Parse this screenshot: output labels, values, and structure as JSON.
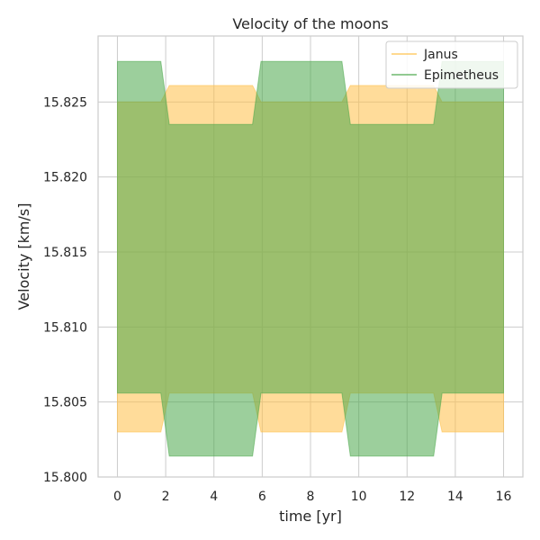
{
  "chart_data": {
    "type": "area",
    "title": "Velocity of the moons",
    "xlabel": "time [yr]",
    "ylabel": "Velocity [km/s]",
    "xlim": [
      -0.8,
      16.8
    ],
    "ylim": [
      15.8,
      15.8294
    ],
    "xticks": [
      0,
      2,
      4,
      6,
      8,
      10,
      12,
      14,
      16
    ],
    "xtick_labels": [
      "0",
      "2",
      "4",
      "6",
      "8",
      "10",
      "12",
      "14",
      "16"
    ],
    "yticks": [
      15.8,
      15.805,
      15.81,
      15.815,
      15.82,
      15.825
    ],
    "ytick_labels": [
      "15.800",
      "15.805",
      "15.810",
      "15.815",
      "15.820",
      "15.825"
    ],
    "grid": true,
    "legend_position": "top-right",
    "series": [
      {
        "name": "Janus",
        "color": "#ffbf47",
        "opacity": 0.55,
        "x": [
          0,
          1.8,
          2.15,
          5.6,
          5.95,
          9.3,
          9.65,
          13.1,
          13.45,
          16
        ],
        "upper": [
          15.825,
          15.825,
          15.8261,
          15.8261,
          15.825,
          15.825,
          15.8261,
          15.8261,
          15.825,
          15.825
        ],
        "lower": [
          15.803,
          15.803,
          15.8056,
          15.8056,
          15.803,
          15.803,
          15.8056,
          15.8056,
          15.803,
          15.803
        ]
      },
      {
        "name": "Epimetheus",
        "color": "#4aa84a",
        "opacity": 0.55,
        "x": [
          0,
          1.8,
          2.15,
          5.6,
          5.95,
          9.3,
          9.65,
          13.1,
          13.45,
          16
        ],
        "upper": [
          15.8277,
          15.8277,
          15.8235,
          15.8235,
          15.8277,
          15.8277,
          15.8235,
          15.8235,
          15.8277,
          15.8277
        ],
        "lower": [
          15.8056,
          15.8056,
          15.8014,
          15.8014,
          15.8056,
          15.8056,
          15.8014,
          15.8014,
          15.8056,
          15.8056
        ]
      }
    ]
  }
}
